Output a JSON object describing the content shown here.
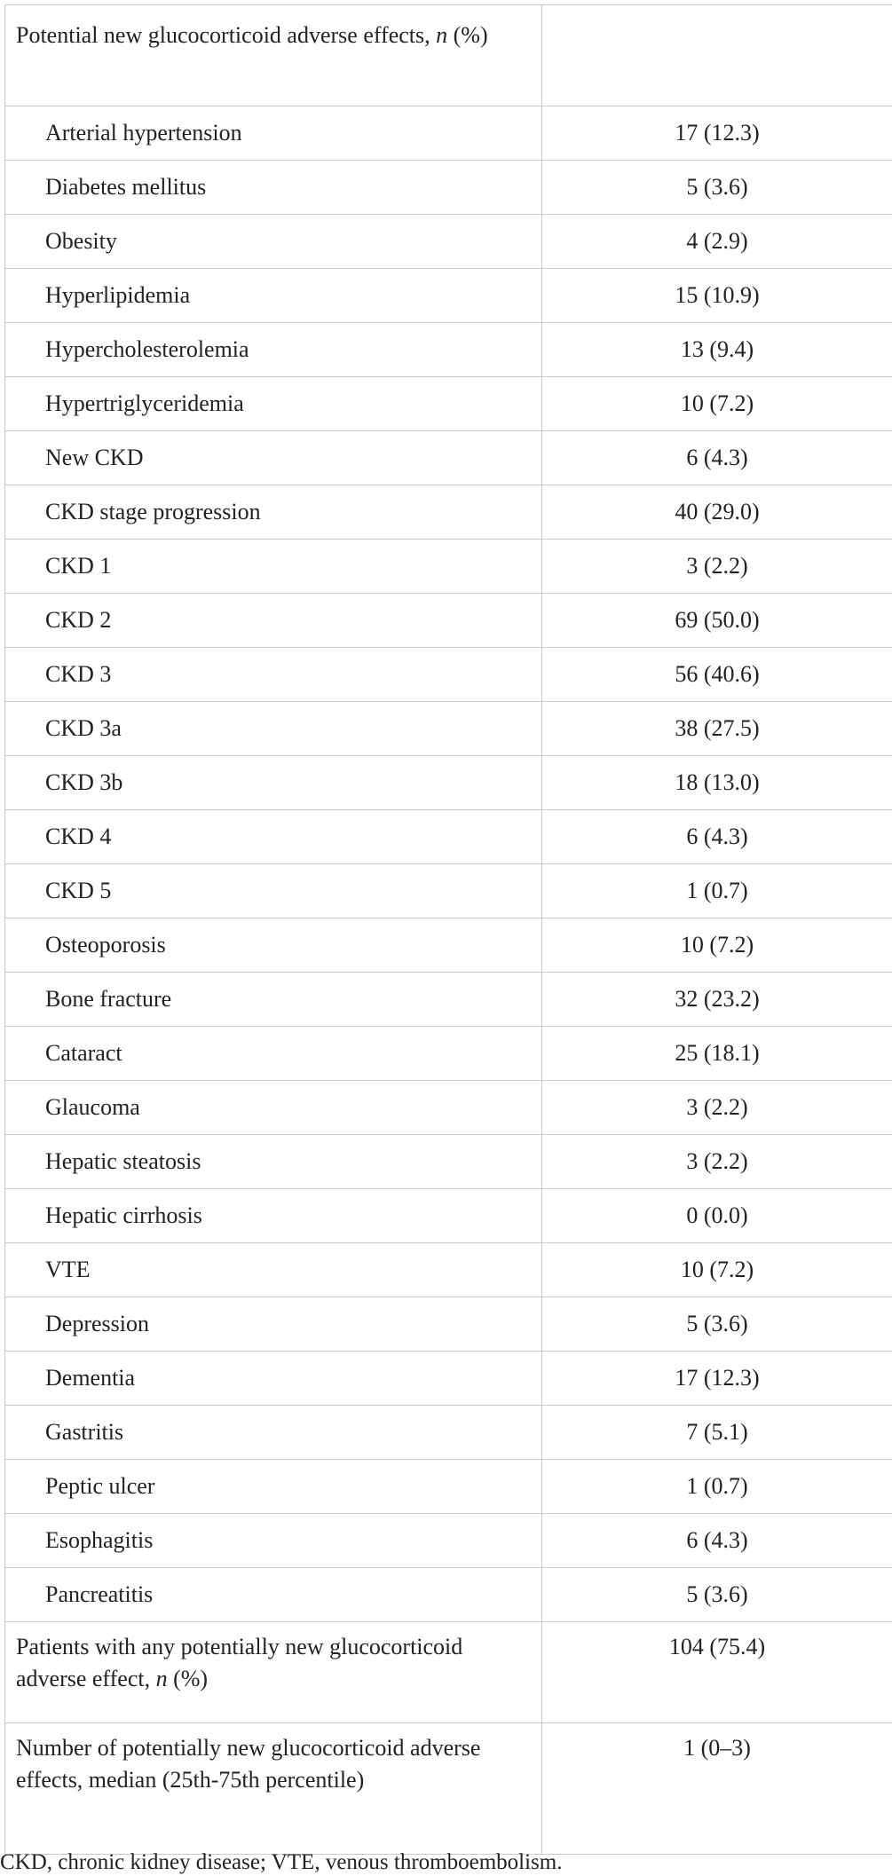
{
  "table": {
    "header": {
      "label_prefix": "Potential new glucocorticoid adverse effects, ",
      "label_italic": "n",
      "label_suffix": " (%)",
      "value": ""
    },
    "rows": [
      {
        "label": "Arterial hypertension",
        "value": "17 (12.3)"
      },
      {
        "label": "Diabetes mellitus",
        "value": "5 (3.6)"
      },
      {
        "label": "Obesity",
        "value": "4 (2.9)"
      },
      {
        "label": "Hyperlipidemia",
        "value": "15 (10.9)"
      },
      {
        "label": "Hypercholesterolemia",
        "value": "13 (9.4)"
      },
      {
        "label": "Hypertriglyceridemia",
        "value": "10 (7.2)"
      },
      {
        "label": "New CKD",
        "value": "6 (4.3)"
      },
      {
        "label": "CKD stage progression",
        "value": "40 (29.0)"
      },
      {
        "label": "CKD 1",
        "value": "3 (2.2)"
      },
      {
        "label": "CKD 2",
        "value": "69 (50.0)"
      },
      {
        "label": "CKD 3",
        "value": "56 (40.6)"
      },
      {
        "label": "CKD 3a",
        "value": "38 (27.5)"
      },
      {
        "label": "CKD 3b",
        "value": "18 (13.0)"
      },
      {
        "label": "CKD 4",
        "value": "6 (4.3)"
      },
      {
        "label": "CKD 5",
        "value": "1 (0.7)"
      },
      {
        "label": "Osteoporosis",
        "value": "10 (7.2)"
      },
      {
        "label": "Bone fracture",
        "value": "32 (23.2)"
      },
      {
        "label": "Cataract",
        "value": "25 (18.1)"
      },
      {
        "label": "Glaucoma",
        "value": "3 (2.2)"
      },
      {
        "label": "Hepatic steatosis",
        "value": "3 (2.2)"
      },
      {
        "label": "Hepatic cirrhosis",
        "value": "0 (0.0)"
      },
      {
        "label": "VTE",
        "value": "10 (7.2)"
      },
      {
        "label": "Depression",
        "value": "5 (3.6)"
      },
      {
        "label": "Dementia",
        "value": "17 (12.3)"
      },
      {
        "label": "Gastritis",
        "value": "7 (5.1)"
      },
      {
        "label": "Peptic ulcer",
        "value": "1 (0.7)"
      },
      {
        "label": "Esophagitis",
        "value": "6 (4.3)"
      },
      {
        "label": "Pancreatitis",
        "value": "5 (3.6)"
      }
    ],
    "summary_any": {
      "label_prefix": "Patients with any potentially new glucocorticoid adverse effect, ",
      "label_italic": "n",
      "label_suffix": " (%)",
      "value": "104 (75.4)"
    },
    "summary_count": {
      "label": "Number of potentially new glucocorticoid adverse effects, median (25th-75th percentile)",
      "value": "1 (0–3)"
    }
  },
  "footnote": "CKD, chronic kidney disease; VTE, venous thromboembolism."
}
